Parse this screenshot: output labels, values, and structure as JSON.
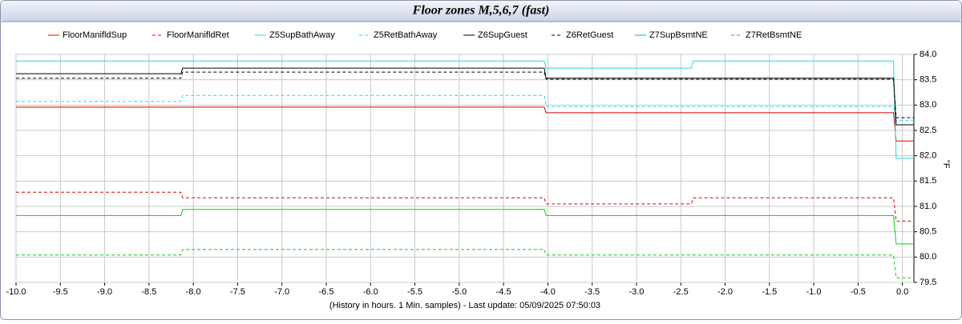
{
  "chart_data": {
    "type": "line",
    "title": "Floor zones M,5,6,7 (fast)",
    "x_label": "(History in hours. 1 Min. samples) - Last update: 05/09/2025 07:50:03",
    "y_label": "°F",
    "x": [
      -10,
      -8.14,
      -8.12,
      -4.04,
      -4.02,
      -2.38,
      -2.36,
      -0.1,
      -0.07,
      0.13
    ],
    "series": [
      {
        "name": "FloorManifldSup",
        "color": "#dd0000",
        "dash": false,
        "values": [
          82.96,
          82.96,
          82.96,
          82.96,
          82.85,
          82.85,
          82.85,
          82.85,
          82.29,
          82.29
        ]
      },
      {
        "name": "FloorManifldRet",
        "color": "#dd0000",
        "dash": true,
        "values": [
          81.28,
          81.28,
          81.17,
          81.17,
          81.05,
          81.05,
          81.17,
          81.17,
          80.71,
          80.71
        ]
      },
      {
        "name": "Z5SupBathAway",
        "color": "#22dddd",
        "dash": false,
        "values": [
          83.87,
          83.87,
          83.87,
          83.87,
          83.73,
          83.73,
          83.87,
          83.87,
          81.95,
          81.95
        ]
      },
      {
        "name": "Z5RetBathAway",
        "color": "#22dddd",
        "dash": true,
        "values": [
          83.07,
          83.07,
          83.19,
          83.19,
          82.97,
          82.97,
          82.97,
          82.97,
          82.7,
          82.7
        ]
      },
      {
        "name": "Z6SupGuest",
        "color": "#000000",
        "dash": false,
        "values": [
          83.62,
          83.62,
          83.73,
          83.73,
          83.53,
          83.53,
          83.53,
          83.53,
          82.61,
          82.61
        ]
      },
      {
        "name": "Z6RetGuest",
        "color": "#000000",
        "dash": true,
        "values": [
          83.53,
          83.53,
          83.65,
          83.65,
          83.51,
          83.51,
          83.51,
          83.51,
          82.75,
          82.75
        ]
      },
      {
        "name": "Z7SupBsmtNE",
        "color": "#11cc11",
        "dash": false,
        "values": [
          80.82,
          80.82,
          80.94,
          80.94,
          80.82,
          80.82,
          80.82,
          80.82,
          80.26,
          80.26
        ]
      },
      {
        "name": "Z7RetBsmtNE",
        "color": "#11cc11",
        "dash": true,
        "values": [
          80.04,
          80.04,
          80.15,
          80.15,
          80.04,
          80.04,
          80.04,
          80.04,
          79.59,
          79.59
        ]
      }
    ],
    "xlim": [
      -10,
      0.13
    ],
    "ylim": [
      79.5,
      84.0
    ],
    "xticks": [
      {
        "value": -10,
        "label": "-10.0"
      },
      -9.5,
      {
        "value": -9,
        "label": "-9.0"
      },
      -8.5,
      {
        "value": -8,
        "label": "-8.0"
      },
      -7.5,
      {
        "value": -7,
        "label": "-7.0"
      },
      -6.5,
      {
        "value": -6,
        "label": "-6.0"
      },
      -5.5,
      {
        "value": -5,
        "label": "-5.0"
      },
      -4.5,
      {
        "value": -4,
        "label": "-4.0"
      },
      -3.5,
      {
        "value": -3,
        "label": "-3.0"
      },
      -2.5,
      {
        "value": -2,
        "label": "-2.0"
      },
      -1.5,
      {
        "value": -1,
        "label": "-1.0"
      },
      -0.5,
      {
        "value": 0,
        "label": "0.0"
      }
    ],
    "yticks": [
      79.5,
      {
        "value": 80,
        "label": "80.0"
      },
      80.5,
      {
        "value": 81,
        "label": "81.0"
      },
      81.5,
      {
        "value": 82,
        "label": "82.0"
      },
      82.5,
      {
        "value": 83,
        "label": "83.0"
      },
      83.5,
      {
        "value": 84,
        "label": "84.0"
      }
    ],
    "grid": true
  }
}
